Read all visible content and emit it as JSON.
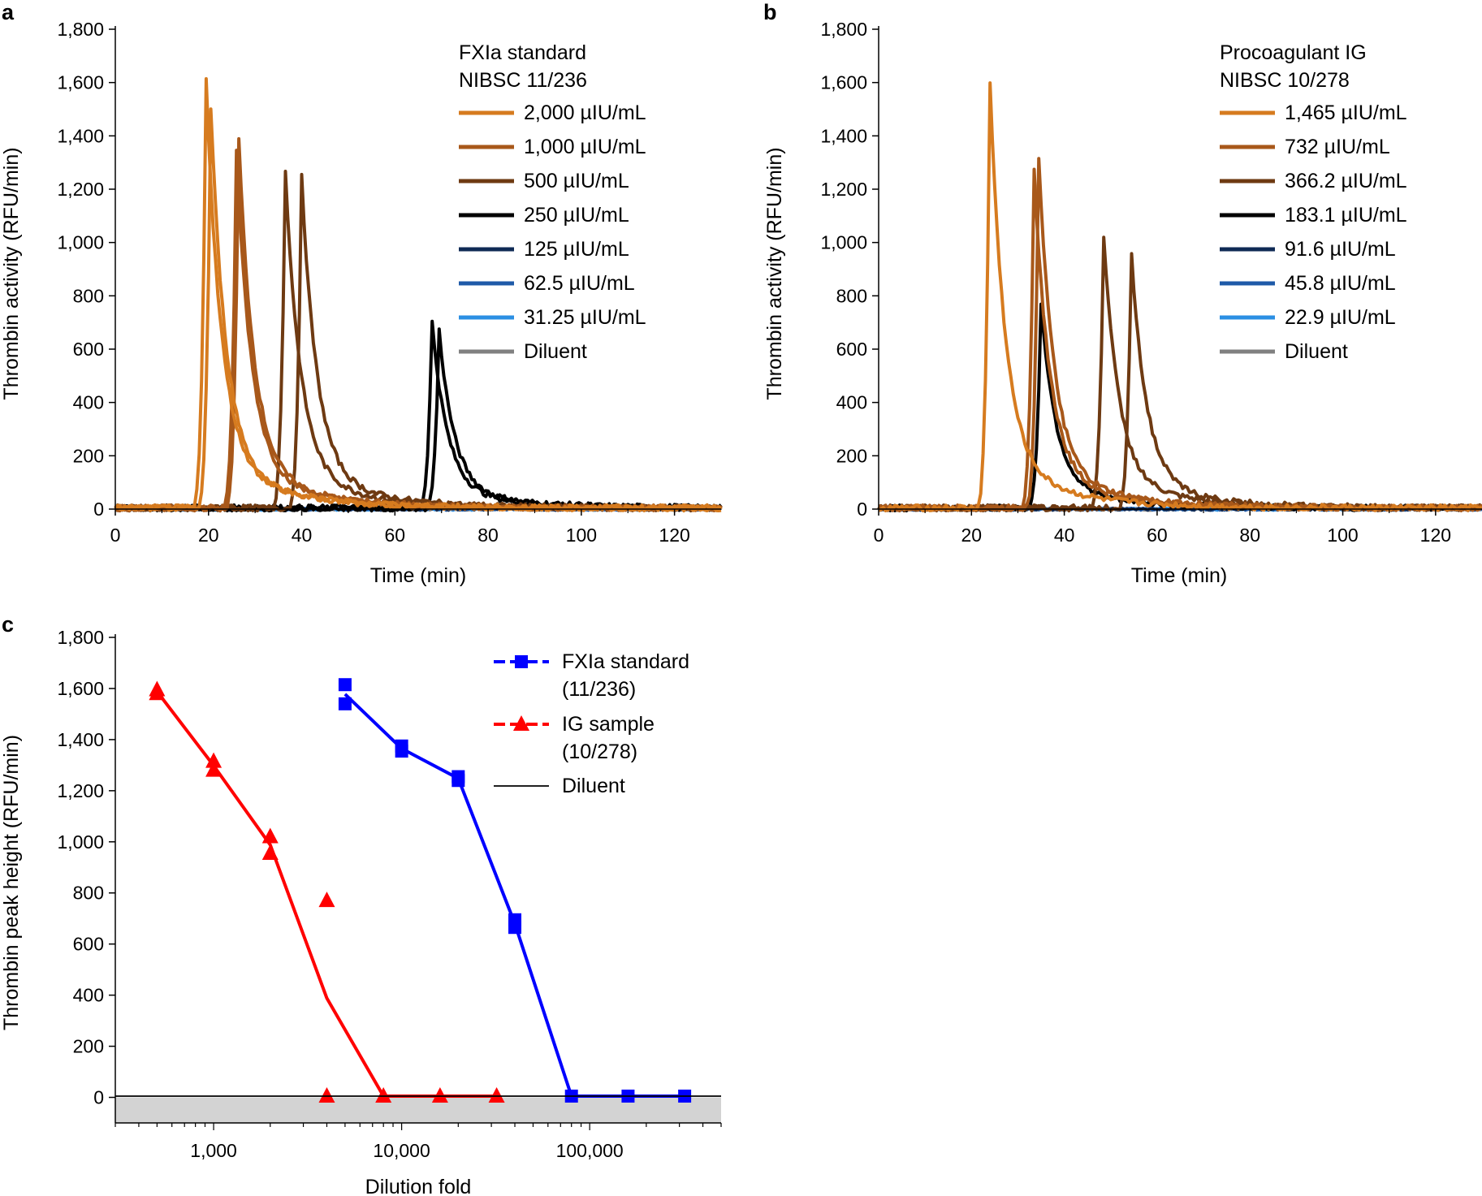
{
  "panels": {
    "a": "a",
    "b": "b",
    "c": "c"
  },
  "chart_data": [
    {
      "id": "a",
      "type": "line",
      "xlabel": "Time (min)",
      "ylabel": "Thrombin activity (RFU/min)",
      "xlim": [
        0,
        130
      ],
      "ylim": [
        0,
        1800
      ],
      "xticks": [
        0,
        20,
        40,
        60,
        80,
        100,
        120
      ],
      "yticks": [
        0,
        200,
        400,
        600,
        800,
        1000,
        1200,
        1400,
        1600,
        1800
      ],
      "xtick_labels": [
        "0",
        "20",
        "40",
        "60",
        "80",
        "100",
        "120"
      ],
      "ytick_labels": [
        "0",
        "200",
        "400",
        "600",
        "800",
        "1,000",
        "1,200",
        "1,400",
        "1,600",
        "1,800"
      ],
      "legend_title": [
        "FXIa standard",
        "NIBSC 11/236"
      ],
      "series": [
        {
          "name": "2,000 µIU/mL",
          "color": "#d67b1f",
          "peaks": [
            {
              "t": 19.5,
              "h": 1610
            },
            {
              "t": 20.5,
              "h": 1500
            }
          ]
        },
        {
          "name": "1,000 µIU/mL",
          "color": "#a8581a",
          "peaks": [
            {
              "t": 26.5,
              "h": 1380
            },
            {
              "t": 26.0,
              "h": 1340
            }
          ]
        },
        {
          "name": "500 µIU/mL",
          "color": "#6e3a12",
          "peaks": [
            {
              "t": 36.5,
              "h": 1260
            },
            {
              "t": 40.0,
              "h": 1240
            }
          ]
        },
        {
          "name": "250 µIU/mL",
          "color": "#000000",
          "peaks": [
            {
              "t": 68.0,
              "h": 695
            },
            {
              "t": 69.5,
              "h": 665
            }
          ]
        },
        {
          "name": "125 µIU/mL",
          "color": "#0f2a55",
          "peaks": []
        },
        {
          "name": "62.5 µIU/mL",
          "color": "#1e5aa8",
          "peaks": []
        },
        {
          "name": "31.25 µIU/mL",
          "color": "#2b8fe3",
          "peaks": []
        },
        {
          "name": "Diluent",
          "color": "#808080",
          "peaks": []
        }
      ]
    },
    {
      "id": "b",
      "type": "line",
      "xlabel": "Time (min)",
      "ylabel": "Thrombin activity (RFU/min)",
      "xlim": [
        0,
        130
      ],
      "ylim": [
        0,
        1800
      ],
      "xticks": [
        0,
        20,
        40,
        60,
        80,
        100,
        120
      ],
      "yticks": [
        0,
        200,
        400,
        600,
        800,
        1000,
        1200,
        1400,
        1600,
        1800
      ],
      "xtick_labels": [
        "0",
        "20",
        "40",
        "60",
        "80",
        "100",
        "120"
      ],
      "ytick_labels": [
        "0",
        "200",
        "400",
        "600",
        "800",
        "1,000",
        "1,200",
        "1,400",
        "1,600",
        "1,800"
      ],
      "legend_title": [
        "Procoagulant IG",
        "NIBSC 10/278"
      ],
      "series": [
        {
          "name": "1,465 µIU/mL",
          "color": "#d67b1f",
          "peaks": [
            {
              "t": 24.0,
              "h": 1595
            }
          ]
        },
        {
          "name": "732 µIU/mL",
          "color": "#a8581a",
          "peaks": [
            {
              "t": 33.5,
              "h": 1280
            },
            {
              "t": 34.5,
              "h": 1315
            }
          ]
        },
        {
          "name": "366.2 µIU/mL",
          "color": "#6e3a12",
          "peaks": [
            {
              "t": 48.5,
              "h": 1020
            },
            {
              "t": 54.5,
              "h": 950
            }
          ]
        },
        {
          "name": "183.1 µIU/mL",
          "color": "#000000",
          "peaks": [
            {
              "t": 35.0,
              "h": 770
            }
          ]
        },
        {
          "name": "91.6 µIU/mL",
          "color": "#0f2a55",
          "peaks": []
        },
        {
          "name": "45.8 µIU/mL",
          "color": "#1e5aa8",
          "peaks": []
        },
        {
          "name": "22.9 µIU/mL",
          "color": "#2b8fe3",
          "peaks": []
        },
        {
          "name": "Diluent",
          "color": "#808080",
          "peaks": []
        }
      ]
    },
    {
      "id": "c",
      "type": "line",
      "xscale": "log",
      "xlabel": "Dilution fold",
      "ylabel": "Thrombin peak height (RFU/min)",
      "xlim": [
        300,
        500000
      ],
      "ylim": [
        -100,
        1800
      ],
      "xticks": [
        1000,
        10000,
        100000
      ],
      "xtick_labels": [
        "1,000",
        "10,000",
        "100,000"
      ],
      "yticks": [
        0,
        200,
        400,
        600,
        800,
        1000,
        1200,
        1400,
        1600,
        1800
      ],
      "ytick_labels": [
        "0",
        "200",
        "400",
        "600",
        "800",
        "1,000",
        "1,200",
        "1,400",
        "1,600",
        "1,800"
      ],
      "shaded_region": {
        "y_from": -100,
        "y_to": 0,
        "color": "#d3d3d3"
      },
      "series": [
        {
          "name": "FXIa standard",
          "name_line2": "(11/236)",
          "color": "#0000ff",
          "marker": "square",
          "points": [
            {
              "x": 5000,
              "y": 1615
            },
            {
              "x": 5000,
              "y": 1540
            },
            {
              "x": 10000,
              "y": 1375
            },
            {
              "x": 10000,
              "y": 1355
            },
            {
              "x": 20000,
              "y": 1255
            },
            {
              "x": 20000,
              "y": 1240
            },
            {
              "x": 40000,
              "y": 695
            },
            {
              "x": 40000,
              "y": 665
            },
            {
              "x": 80000,
              "y": 5
            },
            {
              "x": 160000,
              "y": 5
            },
            {
              "x": 320000,
              "y": 5
            }
          ],
          "line": [
            {
              "x": 5000,
              "y": 1578
            },
            {
              "x": 10000,
              "y": 1365
            },
            {
              "x": 20000,
              "y": 1248
            },
            {
              "x": 40000,
              "y": 680
            },
            {
              "x": 80000,
              "y": 5
            },
            {
              "x": 160000,
              "y": 5
            },
            {
              "x": 320000,
              "y": 5
            }
          ]
        },
        {
          "name": "IG sample",
          "name_line2": "(10/278)",
          "color": "#ff0000",
          "marker": "triangle",
          "points": [
            {
              "x": 500,
              "y": 1595
            },
            {
              "x": 500,
              "y": 1580
            },
            {
              "x": 1000,
              "y": 1315
            },
            {
              "x": 1000,
              "y": 1280
            },
            {
              "x": 2000,
              "y": 1020
            },
            {
              "x": 2000,
              "y": 955
            },
            {
              "x": 4000,
              "y": 770
            },
            {
              "x": 4000,
              "y": 5
            },
            {
              "x": 8000,
              "y": 5
            },
            {
              "x": 16000,
              "y": 5
            },
            {
              "x": 32000,
              "y": 5
            }
          ],
          "line": [
            {
              "x": 500,
              "y": 1588
            },
            {
              "x": 1000,
              "y": 1298
            },
            {
              "x": 2000,
              "y": 988
            },
            {
              "x": 4000,
              "y": 388
            },
            {
              "x": 8000,
              "y": 5
            },
            {
              "x": 16000,
              "y": 5
            },
            {
              "x": 32000,
              "y": 5
            }
          ]
        },
        {
          "name": "Diluent",
          "color": "#000000",
          "marker": "none",
          "line": [
            {
              "x": 300,
              "y": 5
            },
            {
              "x": 500000,
              "y": 5
            }
          ]
        }
      ]
    }
  ]
}
